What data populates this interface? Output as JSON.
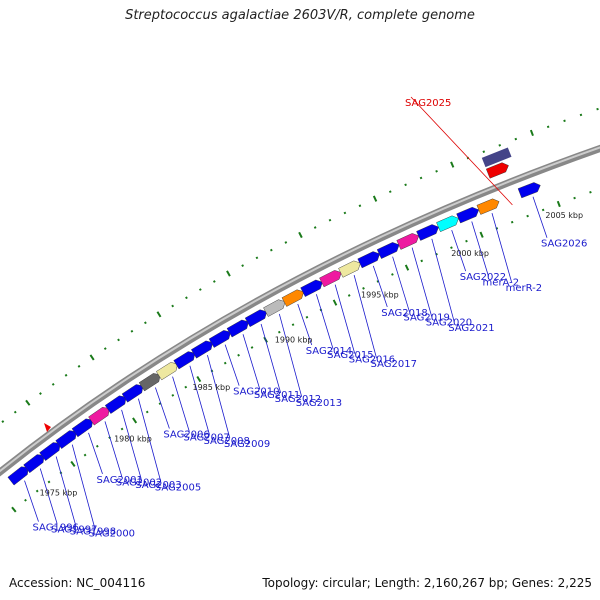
{
  "title": "Streptococcus agalactiae 2603V/R, complete genome",
  "footer": {
    "accession": "Accession: NC_004116",
    "summary": "Topology: circular; Length: 2,160,267 bp; Genes: 2,225"
  },
  "colors": {
    "backbone": "#888888",
    "gene_default": "#0000ee",
    "tick": "#1a7a1a",
    "label": "#1a1acc",
    "selected_label": "#dd0000",
    "selected_gene": "#ee0000",
    "marker": "#ee0000"
  },
  "scale_labels": [
    "1975 kbp",
    "1980 kbp",
    "1985 kbp",
    "1990 kbp",
    "1995 kbp",
    "2000 kbp",
    "2005 kbp"
  ],
  "genes": [
    {
      "name": "SAG1996",
      "color": "#0000ee"
    },
    {
      "name": "SAG1997",
      "color": "#0000ee"
    },
    {
      "name": "SAG1998",
      "color": "#0000ee"
    },
    {
      "name": "SAG2000",
      "color": "#0000ee"
    },
    {
      "name": "SAG2001",
      "color": "#0000ee"
    },
    {
      "name": "SAG2002",
      "color": "#ee1aa0"
    },
    {
      "name": "SAG2003",
      "color": "#0000ee"
    },
    {
      "name": "SAG2005",
      "color": "#0000ee"
    },
    {
      "name": "SAG2006",
      "color": "#666666"
    },
    {
      "name": "SAG2007",
      "color": "#eee8a0"
    },
    {
      "name": "SAG2008",
      "color": "#0000ee"
    },
    {
      "name": "SAG2009",
      "color": "#0000ee"
    },
    {
      "name": "SAG2010",
      "color": "#0000ee"
    },
    {
      "name": "SAG2011",
      "color": "#0000ee"
    },
    {
      "name": "SAG2012",
      "color": "#0000ee"
    },
    {
      "name": "SAG2013",
      "color": "#bbbbbb"
    },
    {
      "name": "SAG2014",
      "color": "#ff8800"
    },
    {
      "name": "SAG2015",
      "color": "#0000ee"
    },
    {
      "name": "SAG2016",
      "color": "#ee1aa0"
    },
    {
      "name": "SAG2017",
      "color": "#eee8a0"
    },
    {
      "name": "SAG2018",
      "color": "#0000ee"
    },
    {
      "name": "SAG2019",
      "color": "#0000ee"
    },
    {
      "name": "SAG2020",
      "color": "#ee1aa0"
    },
    {
      "name": "SAG2021",
      "color": "#0000ee"
    },
    {
      "name": "SAG2022",
      "color": "#00ffff"
    },
    {
      "name": "merA-2",
      "color": "#0000ee"
    },
    {
      "name": "merR-2",
      "color": "#ff8800"
    },
    {
      "name": "SAG2025",
      "color": "#ee0000",
      "selected": true
    },
    {
      "name": "SAG2026",
      "color": "#0000ee"
    }
  ]
}
